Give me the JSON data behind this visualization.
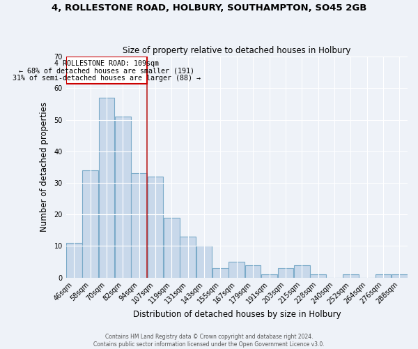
{
  "title": "4, ROLLESTONE ROAD, HOLBURY, SOUTHAMPTON, SO45 2GB",
  "subtitle": "Size of property relative to detached houses in Holbury",
  "xlabel": "Distribution of detached houses by size in Holbury",
  "ylabel": "Number of detached properties",
  "bar_color": "#c8d8ea",
  "bar_edge_color": "#7aaac8",
  "categories": [
    "46sqm",
    "58sqm",
    "70sqm",
    "82sqm",
    "94sqm",
    "107sqm",
    "119sqm",
    "131sqm",
    "143sqm",
    "155sqm",
    "167sqm",
    "179sqm",
    "191sqm",
    "203sqm",
    "215sqm",
    "228sqm",
    "240sqm",
    "252sqm",
    "264sqm",
    "276sqm",
    "288sqm"
  ],
  "values": [
    11,
    34,
    57,
    51,
    33,
    32,
    19,
    13,
    10,
    3,
    5,
    4,
    1,
    3,
    4,
    1,
    0,
    1,
    0,
    1,
    1
  ],
  "ylim": [
    0,
    70
  ],
  "yticks": [
    0,
    10,
    20,
    30,
    40,
    50,
    60,
    70
  ],
  "property_line_x": 4.5,
  "annotation_line": "4 ROLLESTONE ROAD: 109sqm",
  "annotation_smaller": "← 68% of detached houses are smaller (191)",
  "annotation_larger": "31% of semi-detached houses are larger (88) →",
  "annotation_box_color": "#cc0000",
  "property_line_color": "#bb2222",
  "footer1": "Contains HM Land Registry data © Crown copyright and database right 2024.",
  "footer2": "Contains public sector information licensed under the Open Government Licence v3.0.",
  "background_color": "#eef2f8",
  "plot_background": "#eef2f8",
  "grid_color": "#ffffff"
}
